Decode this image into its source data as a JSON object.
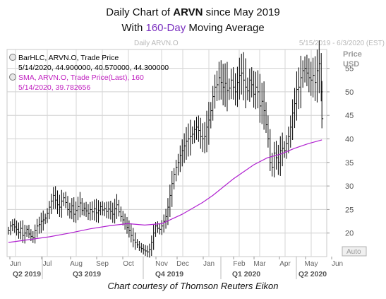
{
  "title": {
    "prefix": "Daily Chart of ",
    "ticker": "ARVN",
    "suffix": " since May 2019",
    "line2_prefix": "With ",
    "line2_highlight": "160-Day",
    "line2_suffix": " Moving Average"
  },
  "header": {
    "chart_name": "Daily ARVN.O",
    "date_range": "5/15/2019 - 6/3/2020 (EST)"
  },
  "legend": [
    {
      "line1": "BarHLC, ARVN.O, Trade Price",
      "line2": "5/14/2020, 44.900000, 40.570000, 44.300000",
      "color": "#000000",
      "icon": "bar-series-icon"
    },
    {
      "line1": "SMA, ARVN.O, Trade Price(Last),  160",
      "line2": "5/14/2020, 39.782656",
      "color": "#c020c0",
      "icon": "sma-series-icon"
    }
  ],
  "y_axis": {
    "label_top": "Price",
    "label_unit": "USD",
    "auto_label": "Auto"
  },
  "footer": "Chart courtesy of Thomson Reuters Eikon",
  "colors": {
    "price_bars": "#000000",
    "sma_line": "#b020d0",
    "grid": "#c8c8c8",
    "highlight": "#7a2fbf"
  },
  "chart_data": {
    "type": "line",
    "ylim": [
      15,
      59
    ],
    "y_ticks": [
      20,
      25,
      30,
      35,
      40,
      45,
      50,
      55
    ],
    "x_months": [
      "Jun",
      "Jul",
      "Aug",
      "Sep",
      "Oct",
      "Nov",
      "Dec",
      "Jan",
      "Feb",
      "Mar",
      "Apr",
      "May",
      "Jun"
    ],
    "x_quarters": [
      "Q2 2019",
      "Q3 2019",
      "Q4 2019",
      "Q1 2020",
      "Q2 2020"
    ],
    "series": [
      {
        "name": "BarHLC, ARVN.O",
        "style": "hlc-bars",
        "points": [
          [
            0,
            20.5
          ],
          [
            3,
            21.5
          ],
          [
            6,
            21.8
          ],
          [
            9,
            21.3
          ],
          [
            12,
            20.8
          ],
          [
            15,
            20.2
          ],
          [
            18,
            21.0
          ],
          [
            21,
            19.5
          ],
          [
            24,
            20.0
          ],
          [
            27,
            20.8
          ],
          [
            30,
            19.8
          ],
          [
            33,
            19.3
          ],
          [
            36,
            19.0
          ],
          [
            39,
            20.5
          ],
          [
            42,
            21.5
          ],
          [
            45,
            21.8
          ],
          [
            48,
            22.5
          ],
          [
            51,
            22.8
          ],
          [
            54,
            23.2
          ],
          [
            57,
            24.2
          ],
          [
            60,
            25.5
          ],
          [
            63,
            26.8
          ],
          [
            66,
            28.0
          ],
          [
            69,
            27.0
          ],
          [
            72,
            26.0
          ],
          [
            75,
            25.5
          ],
          [
            78,
            26.8
          ],
          [
            81,
            27.5
          ],
          [
            84,
            26.5
          ],
          [
            87,
            25.0
          ],
          [
            90,
            24.5
          ],
          [
            93,
            25.8
          ],
          [
            96,
            24.0
          ],
          [
            99,
            24.8
          ],
          [
            102,
            25.6
          ],
          [
            105,
            26.4
          ],
          [
            108,
            24.8
          ],
          [
            111,
            25.3
          ],
          [
            114,
            24.7
          ],
          [
            117,
            24.2
          ],
          [
            120,
            25.0
          ],
          [
            123,
            24.5
          ],
          [
            126,
            25.2
          ],
          [
            129,
            24.3
          ],
          [
            132,
            24.8
          ],
          [
            135,
            25.6
          ],
          [
            138,
            24.9
          ],
          [
            141,
            25.2
          ],
          [
            144,
            24.6
          ],
          [
            147,
            25.1
          ],
          [
            150,
            24.6
          ],
          [
            153,
            24.0
          ],
          [
            156,
            25.2
          ],
          [
            159,
            26.0
          ],
          [
            162,
            24.5
          ],
          [
            165,
            23.5
          ],
          [
            168,
            22.8
          ],
          [
            171,
            22.0
          ],
          [
            174,
            21.2
          ],
          [
            177,
            20.5
          ],
          [
            180,
            19.5
          ],
          [
            183,
            18.5
          ],
          [
            186,
            18.0
          ],
          [
            189,
            17.5
          ],
          [
            192,
            17.0
          ],
          [
            195,
            16.7
          ],
          [
            198,
            16.4
          ],
          [
            201,
            16.2
          ],
          [
            204,
            16.0
          ],
          [
            207,
            16.5
          ],
          [
            210,
            18.0
          ],
          [
            213,
            20.0
          ],
          [
            216,
            21.5
          ],
          [
            219,
            21.0
          ],
          [
            222,
            20.8
          ],
          [
            225,
            21.5
          ],
          [
            228,
            22.5
          ],
          [
            231,
            23.5
          ],
          [
            234,
            25.5
          ],
          [
            237,
            28.0
          ],
          [
            240,
            30.5
          ],
          [
            243,
            32.5
          ],
          [
            246,
            34.0
          ],
          [
            249,
            35.0
          ],
          [
            252,
            36.5
          ],
          [
            255,
            37.5
          ],
          [
            258,
            38.5
          ],
          [
            261,
            39.5
          ],
          [
            264,
            40.0
          ],
          [
            267,
            40.5
          ],
          [
            270,
            41.0
          ],
          [
            273,
            42.0
          ],
          [
            276,
            42.5
          ],
          [
            279,
            41.8
          ],
          [
            282,
            40.5
          ],
          [
            285,
            40.0
          ],
          [
            288,
            40.5
          ],
          [
            291,
            42.5
          ],
          [
            294,
            44.0
          ],
          [
            297,
            46.0
          ],
          [
            300,
            49.0
          ],
          [
            303,
            51.0
          ],
          [
            306,
            51.5
          ],
          [
            309,
            53.0
          ],
          [
            312,
            52.0
          ],
          [
            315,
            51.0
          ],
          [
            318,
            51.8
          ],
          [
            321,
            50.3
          ],
          [
            324,
            50.8
          ],
          [
            327,
            52.5
          ],
          [
            330,
            51.0
          ],
          [
            333,
            50.0
          ],
          [
            336,
            52.0
          ],
          [
            339,
            53.5
          ],
          [
            342,
            54.0
          ],
          [
            345,
            52.5
          ],
          [
            348,
            51.0
          ],
          [
            351,
            50.2
          ],
          [
            354,
            52.5
          ],
          [
            357,
            51.5
          ],
          [
            360,
            49.5
          ],
          [
            363,
            51.0
          ],
          [
            366,
            50.0
          ],
          [
            369,
            47.0
          ],
          [
            372,
            48.0
          ],
          [
            375,
            46.0
          ],
          [
            378,
            43.0
          ],
          [
            381,
            40.0
          ],
          [
            384,
            35.0
          ],
          [
            387,
            34.0
          ],
          [
            390,
            37.0
          ],
          [
            393,
            36.0
          ],
          [
            396,
            35.0
          ],
          [
            399,
            37.5
          ],
          [
            402,
            38.0
          ],
          [
            405,
            37.5
          ],
          [
            408,
            39.0
          ],
          [
            411,
            40.5
          ],
          [
            414,
            42.5
          ],
          [
            417,
            45.5
          ],
          [
            420,
            47.5
          ],
          [
            423,
            50.5
          ],
          [
            426,
            51.0
          ],
          [
            429,
            53.0
          ],
          [
            432,
            54.5
          ],
          [
            435,
            55.0
          ],
          [
            438,
            54.0
          ],
          [
            441,
            53.0
          ],
          [
            444,
            52.5
          ],
          [
            447,
            53.5
          ],
          [
            450,
            52.0
          ],
          [
            453,
            54.5
          ],
          [
            456,
            56.0
          ],
          [
            459,
            50.0
          ],
          [
            460,
            44.3
          ]
        ]
      },
      {
        "name": "SMA, ARVN.O, 160",
        "style": "line",
        "points": [
          [
            0,
            18.0
          ],
          [
            30,
            18.6
          ],
          [
            60,
            19.2
          ],
          [
            90,
            20.0
          ],
          [
            120,
            20.9
          ],
          [
            150,
            21.6
          ],
          [
            175,
            22.0
          ],
          [
            200,
            21.7
          ],
          [
            225,
            22.0
          ],
          [
            255,
            24.0
          ],
          [
            285,
            26.5
          ],
          [
            300,
            28.0
          ],
          [
            330,
            31.5
          ],
          [
            360,
            34.5
          ],
          [
            380,
            36.0
          ],
          [
            400,
            36.8
          ],
          [
            420,
            38.0
          ],
          [
            440,
            39.0
          ],
          [
            460,
            39.8
          ]
        ]
      }
    ]
  }
}
